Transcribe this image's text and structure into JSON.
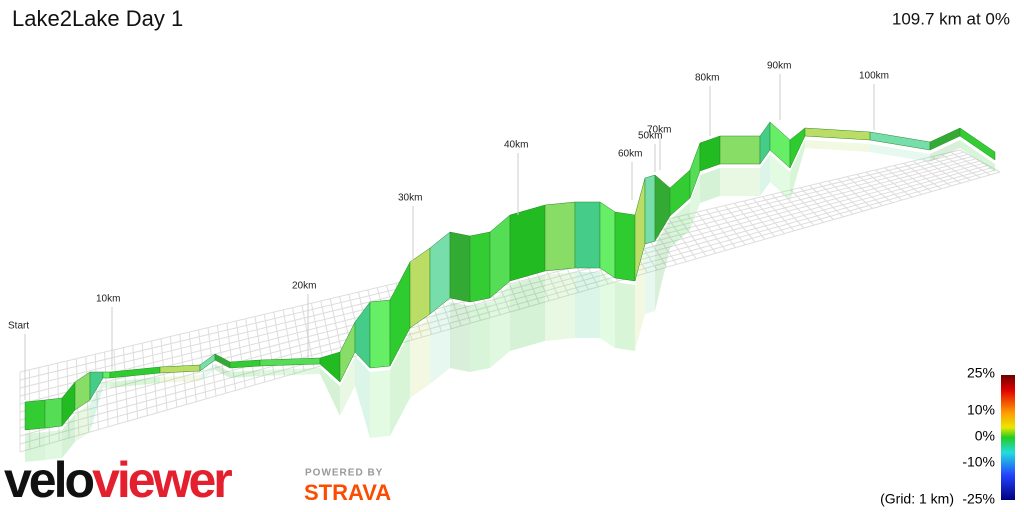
{
  "header": {
    "title": "Lake2Lake Day 1",
    "summary": "109.7 km at 0%"
  },
  "markers": [
    "Start",
    "10km",
    "20km",
    "30km",
    "40km",
    "50km",
    "60km",
    "70km",
    "80km",
    "90km",
    "100km"
  ],
  "legend": {
    "labels": [
      "25%",
      "10%",
      "0%",
      "-10%",
      "-25%"
    ],
    "grid_note": "(Grid: 1 km)"
  },
  "branding": {
    "logo_part1": "velo",
    "logo_part2": "viewer",
    "powered": "POWERED BY",
    "strava": "STRAVA"
  }
}
